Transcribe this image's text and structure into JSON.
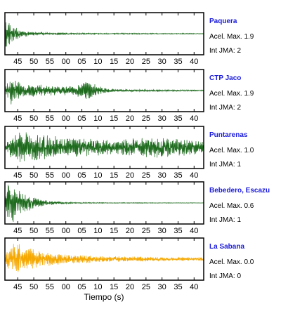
{
  "chart_data": {
    "type": "line",
    "xlabel": "Tiempo (s)",
    "x_ticks": [
      "45",
      "50",
      "55",
      "00",
      "05",
      "10",
      "15",
      "20",
      "25",
      "30",
      "35",
      "40"
    ],
    "panels": [
      {
        "station": "Paquera",
        "acel": "Acel. Max. 1.9",
        "jma": "Int JMA: 2",
        "color": "#1e6b1e",
        "envelope": [
          [
            0.0,
            1.0
          ],
          [
            0.4,
            0.95
          ],
          [
            1.0,
            0.65
          ],
          [
            2.0,
            0.45
          ],
          [
            3.5,
            0.3
          ],
          [
            5.0,
            0.18
          ],
          [
            8.0,
            0.1
          ],
          [
            12.0,
            0.07
          ],
          [
            18.0,
            0.05
          ],
          [
            30.0,
            0.03
          ],
          [
            62.0,
            0.02
          ]
        ]
      },
      {
        "station": "CTP Jaco",
        "acel": "Acel. Max. 1.9",
        "jma": "Int JMA: 2",
        "color": "#1e6b1e",
        "envelope": [
          [
            0.0,
            0.05
          ],
          [
            1.0,
            0.6
          ],
          [
            2.5,
            0.7
          ],
          [
            5.0,
            0.35
          ],
          [
            9.0,
            0.3
          ],
          [
            15.0,
            0.25
          ],
          [
            21.0,
            0.2
          ],
          [
            26.0,
            0.45
          ],
          [
            27.0,
            0.35
          ],
          [
            32.0,
            0.1
          ],
          [
            40.0,
            0.06
          ],
          [
            62.0,
            0.03
          ]
        ]
      },
      {
        "station": "Puntarenas",
        "acel": "Acel. Max. 1.0",
        "jma": "Int JMA: 1",
        "color": "#1e6b1e",
        "envelope": [
          [
            0.0,
            0.1
          ],
          [
            2.0,
            0.6
          ],
          [
            6.0,
            0.8
          ],
          [
            12.0,
            0.6
          ],
          [
            20.0,
            0.45
          ],
          [
            28.0,
            0.4
          ],
          [
            35.0,
            0.35
          ],
          [
            40.0,
            0.45
          ],
          [
            46.0,
            0.5
          ],
          [
            52.0,
            0.45
          ],
          [
            58.0,
            0.35
          ],
          [
            62.0,
            0.3
          ]
        ]
      },
      {
        "station": "Bebedero, Escazu",
        "acel": "Acel. Max. 0.6",
        "jma": "Int JMA: 1",
        "color": "#1e6b1e",
        "envelope": [
          [
            0.0,
            0.2
          ],
          [
            0.8,
            0.85
          ],
          [
            2.5,
            0.9
          ],
          [
            5.0,
            0.55
          ],
          [
            8.0,
            0.35
          ],
          [
            12.0,
            0.15
          ],
          [
            16.0,
            0.08
          ],
          [
            20.0,
            0.04
          ],
          [
            30.0,
            0.02
          ],
          [
            62.0,
            0.01
          ]
        ]
      },
      {
        "station": "La Sabana",
        "acel": "Acel. Max. 0.0",
        "jma": "Int JMA: 0",
        "color": "#f5a800",
        "envelope": [
          [
            0.0,
            0.1
          ],
          [
            1.0,
            0.55
          ],
          [
            3.0,
            0.8
          ],
          [
            6.0,
            0.6
          ],
          [
            10.0,
            0.4
          ],
          [
            16.0,
            0.3
          ],
          [
            22.0,
            0.22
          ],
          [
            30.0,
            0.15
          ],
          [
            40.0,
            0.12
          ],
          [
            62.0,
            0.08
          ]
        ]
      }
    ]
  }
}
